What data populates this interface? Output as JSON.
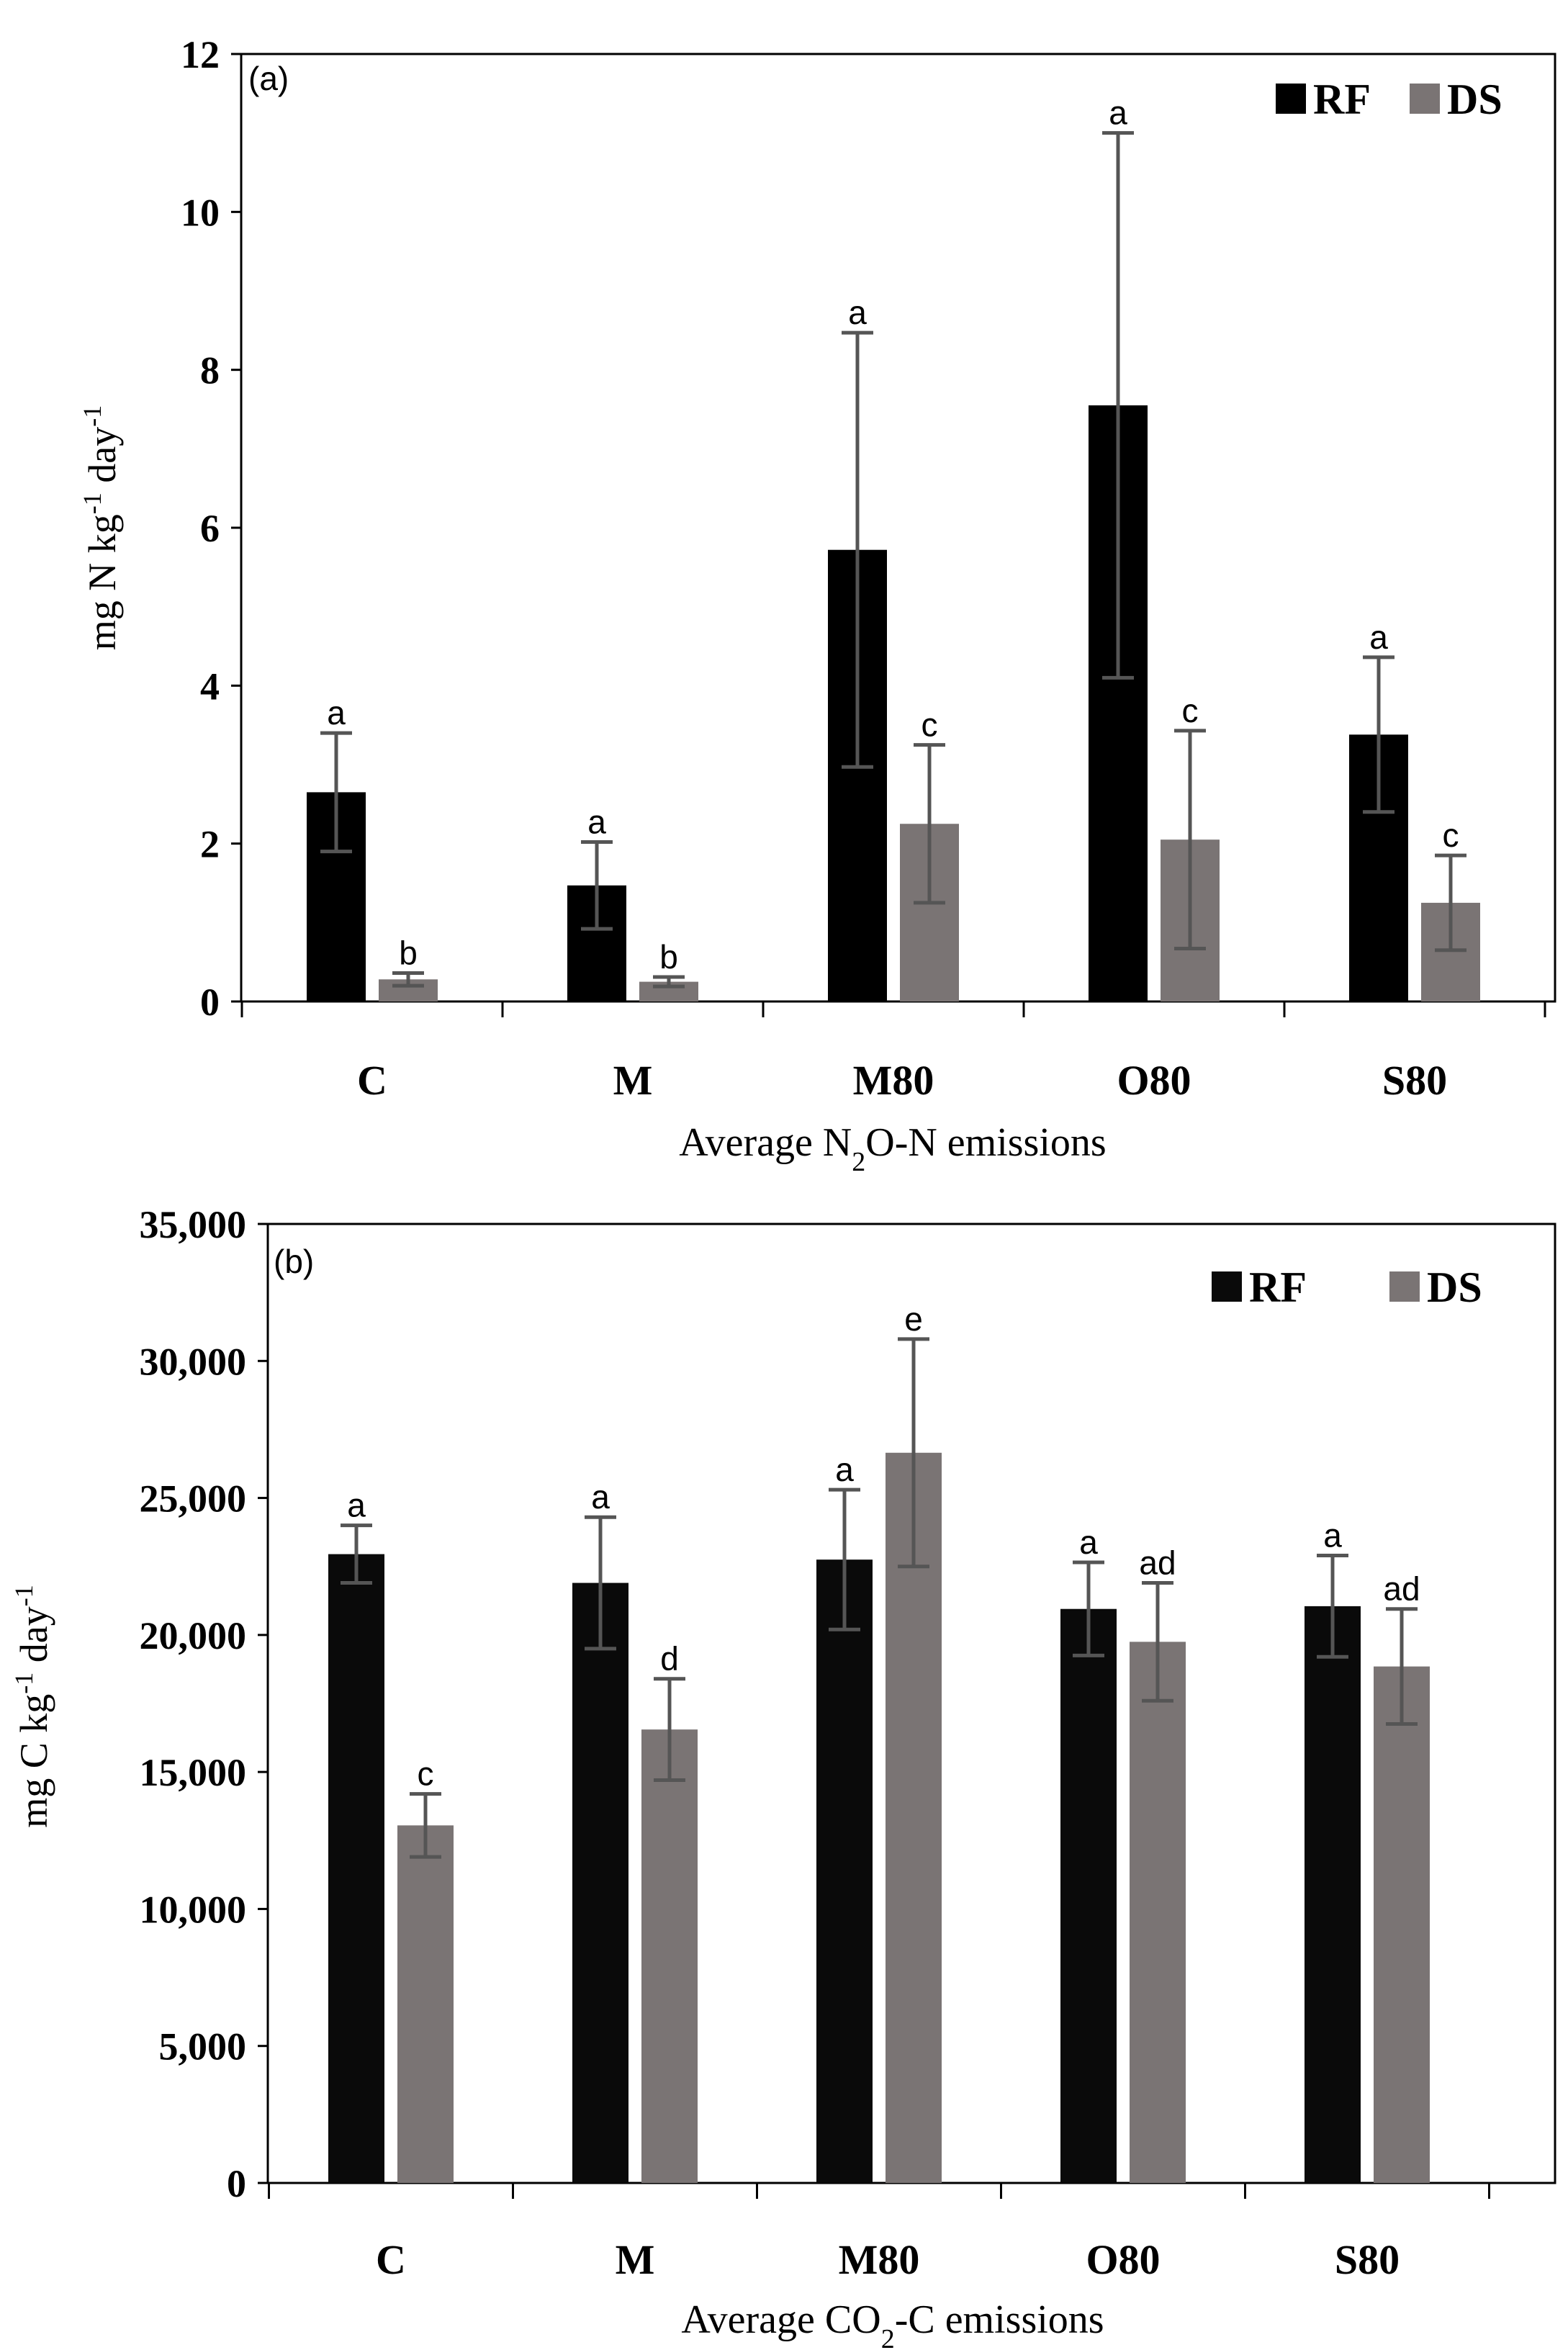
{
  "chart_data": [
    {
      "type": "bar",
      "panel_label": "(a)",
      "categories": [
        "C",
        "M",
        "M80",
        "O80",
        "S80"
      ],
      "xlabel": "Average N",
      "xlabel_sub": "2",
      "xlabel_tail": "O-N emissions",
      "ylabel": "mg N  kg",
      "ylabel_sup1": "-1",
      "ylabel_mid": " day",
      "ylabel_sup2": "-1",
      "ylim": [
        0,
        12
      ],
      "yticks": [
        0,
        2,
        4,
        6,
        8,
        10,
        12
      ],
      "ytick_labels": [
        "0",
        "2",
        "4",
        "6",
        "8",
        "10",
        "12"
      ],
      "legend_position": "top-right",
      "grid": false,
      "series": [
        {
          "name": "RF",
          "color": "#000000",
          "values": [
            2.65,
            1.47,
            5.72,
            7.55,
            3.38
          ],
          "errors": [
            0.75,
            0.55,
            2.75,
            3.45,
            0.98
          ],
          "labels": [
            "a",
            "a",
            "a",
            "a",
            "a"
          ]
        },
        {
          "name": "DS",
          "color": "#7a7474",
          "values": [
            0.28,
            0.25,
            2.25,
            2.05,
            1.25
          ],
          "errors": [
            0.08,
            0.06,
            1.0,
            1.38,
            0.6
          ],
          "labels": [
            "b",
            "b",
            "c",
            "c",
            "c"
          ]
        }
      ]
    },
    {
      "type": "bar",
      "panel_label": "(b)",
      "categories": [
        "C",
        "M",
        "M80",
        "O80",
        "S80"
      ],
      "xlabel": "Average CO",
      "xlabel_sub": "2",
      "xlabel_tail": "-C emissions",
      "ylabel": "mg C kg",
      "ylabel_sup1": "-1",
      "ylabel_mid": " day",
      "ylabel_sup2": "-1",
      "ylim": [
        0,
        35000
      ],
      "yticks": [
        0,
        5000,
        10000,
        15000,
        20000,
        25000,
        30000,
        35000
      ],
      "ytick_labels": [
        "0",
        "5,000",
        "10,000",
        "15,000",
        "20,000",
        "25,000",
        "30,000",
        "35,000"
      ],
      "legend_position": "top-right",
      "grid": false,
      "series": [
        {
          "name": "RF",
          "color": "#0a0a0a",
          "values": [
            22950,
            21900,
            22750,
            20950,
            21050
          ],
          "errors": [
            1050,
            2400,
            2550,
            1700,
            1850
          ],
          "labels": [
            "a",
            "a",
            "a",
            "a",
            "a"
          ]
        },
        {
          "name": "DS",
          "color": "#7a7474",
          "values": [
            13050,
            16550,
            26650,
            19750,
            18850
          ],
          "errors": [
            1150,
            1850,
            4150,
            2150,
            2100
          ],
          "labels": [
            "c",
            "d",
            "e",
            "ad",
            "ad"
          ]
        }
      ]
    }
  ]
}
